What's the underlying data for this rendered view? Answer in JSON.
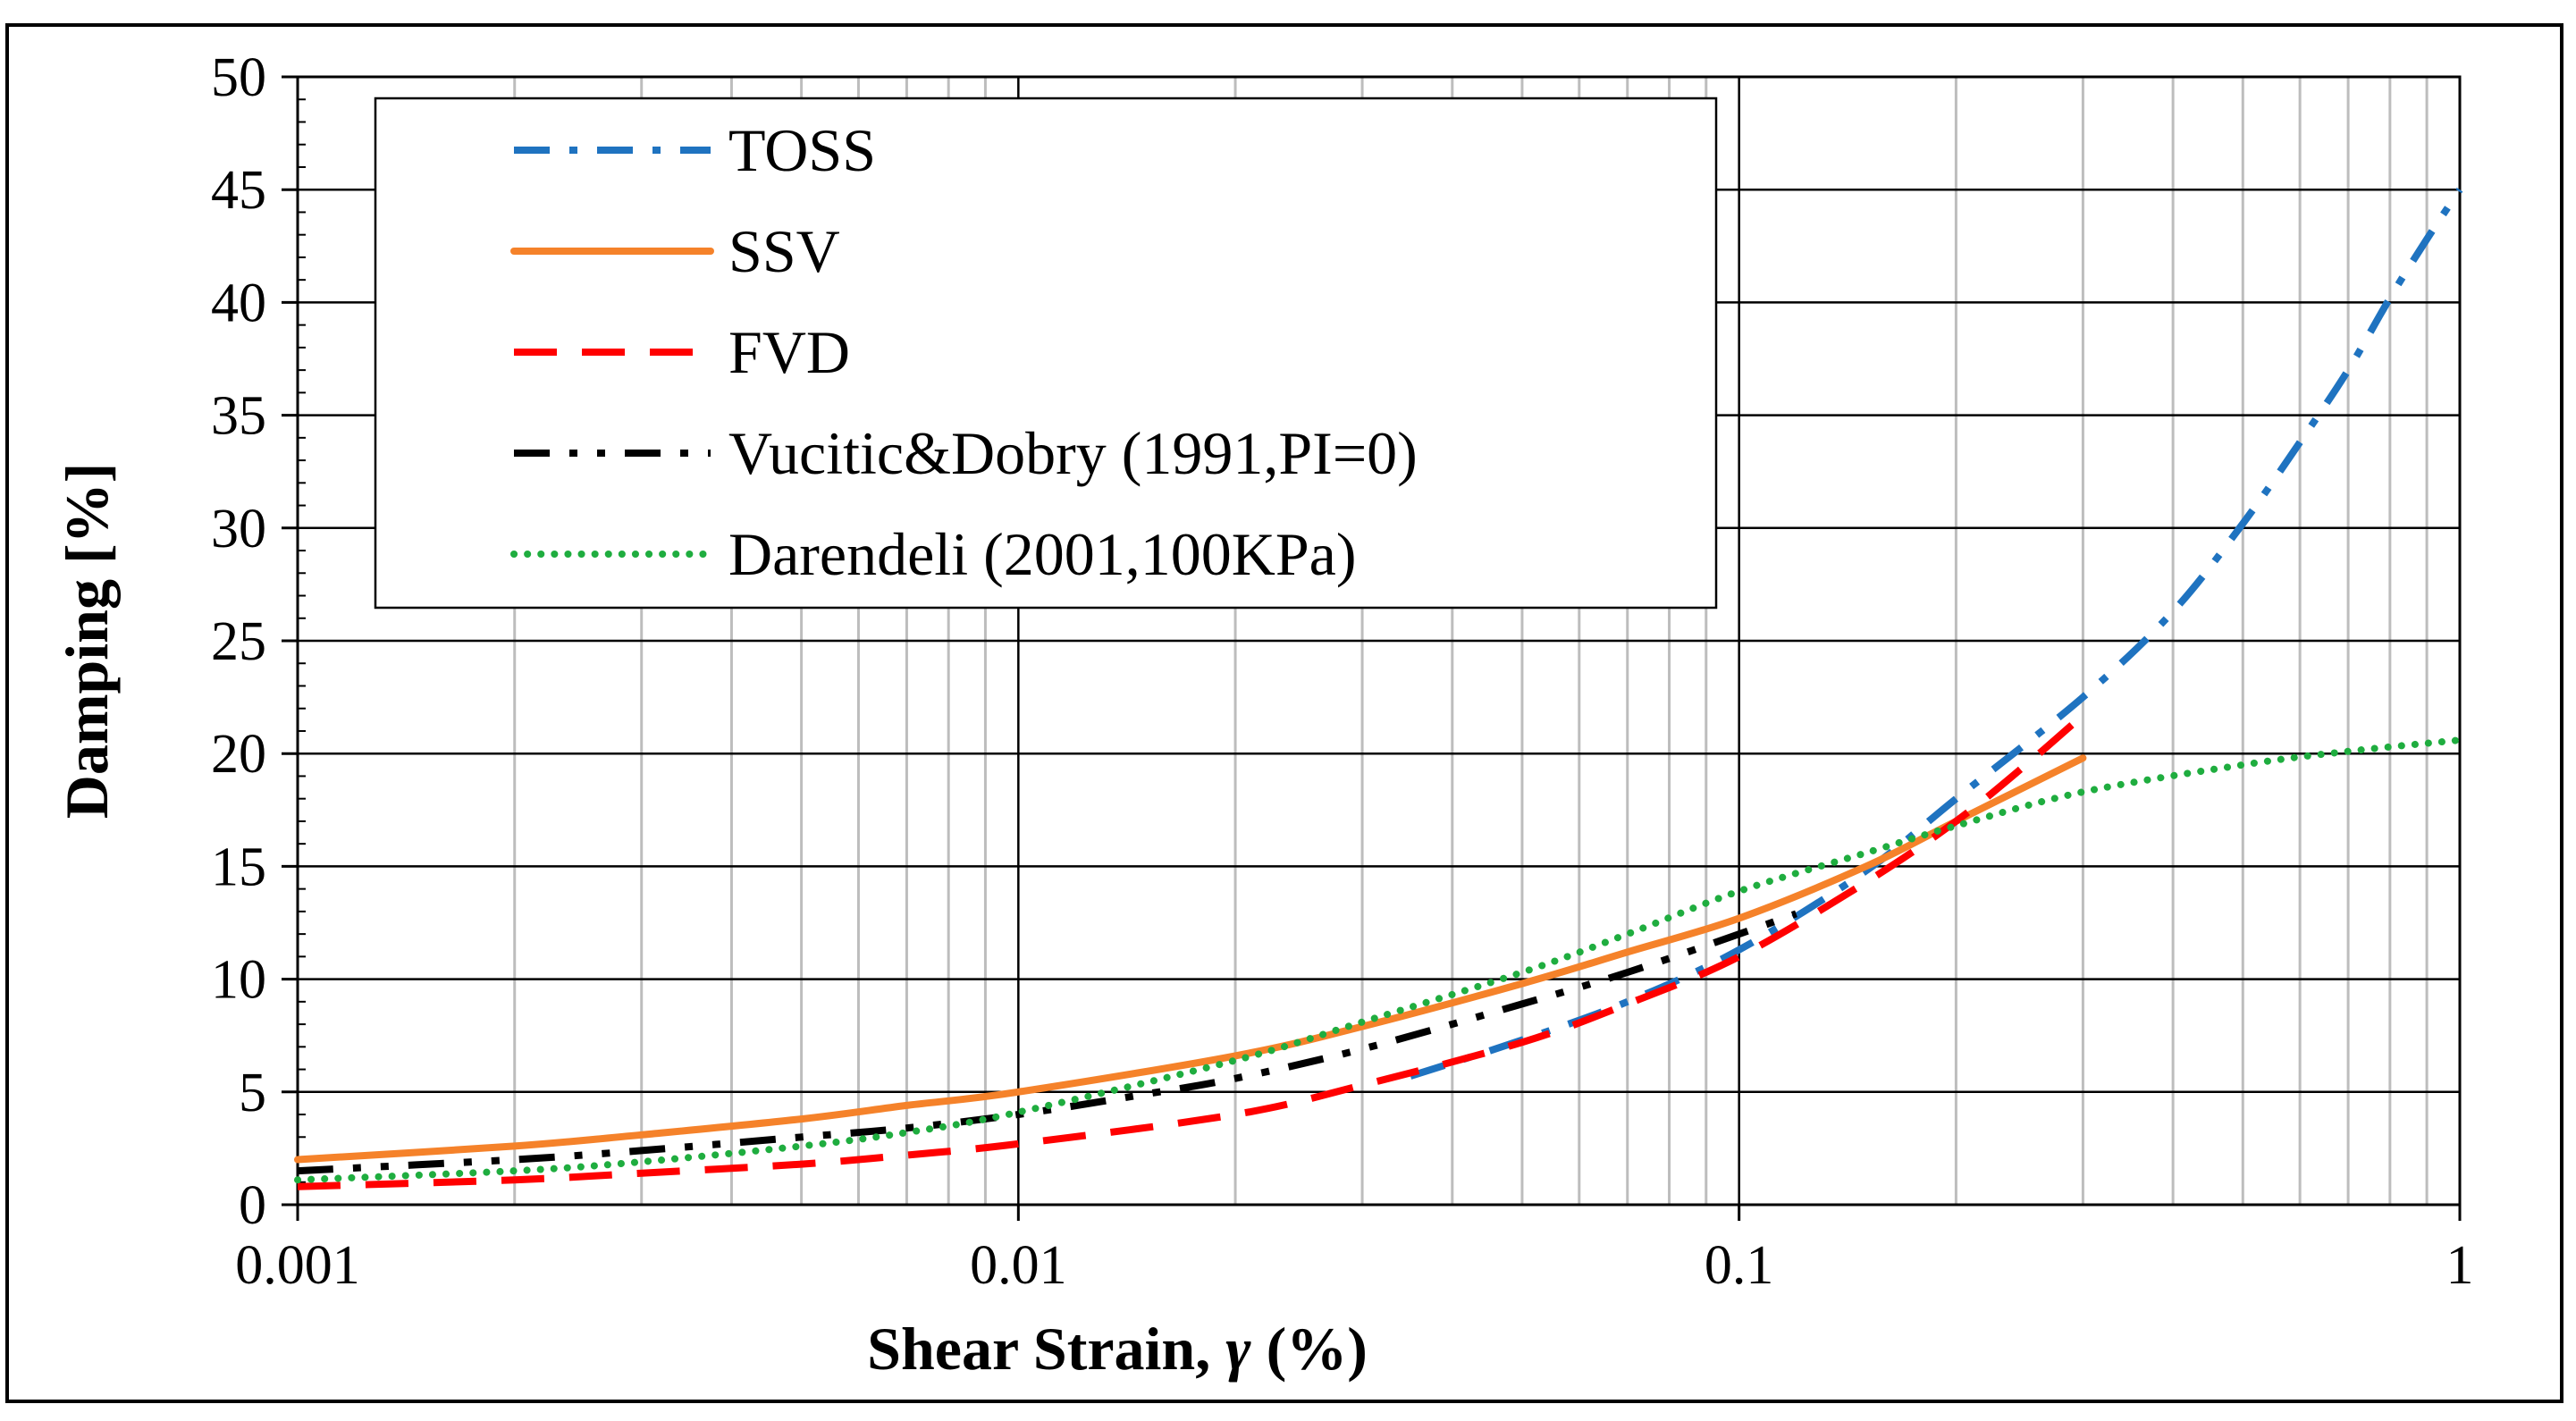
{
  "chart_data": {
    "type": "line",
    "xscale": "log",
    "xlabel_main": "Shear Strain, ",
    "xlabel_symbol": "γ",
    "xlabel_unit": " (%)",
    "ylabel": "Damping  [%]",
    "xlim": [
      0.001,
      1
    ],
    "ylim": [
      0,
      50
    ],
    "x_ticks": [
      0.001,
      0.01,
      0.1,
      1
    ],
    "x_tick_labels": [
      "0.001",
      "0.01",
      "0.1",
      "1"
    ],
    "y_ticks": [
      0,
      5,
      10,
      15,
      20,
      25,
      30,
      35,
      40,
      45,
      50
    ],
    "y_tick_labels": [
      "0",
      "5",
      "10",
      "15",
      "20",
      "25",
      "30",
      "35",
      "40",
      "45",
      "50"
    ],
    "grid": true,
    "legend_position": "top-left",
    "series": [
      {
        "name": "TOSS",
        "color": "#1f73c0",
        "style": "dash-dot",
        "x": [
          0.035,
          0.05,
          0.07,
          0.1,
          0.15,
          0.2,
          0.3,
          0.4,
          0.5,
          0.6,
          0.7,
          0.8,
          0.9,
          1.0
        ],
        "y": [
          5.7,
          7.3,
          9.0,
          11.3,
          14.8,
          18.0,
          22.5,
          26.3,
          30.2,
          33.8,
          37.0,
          40.2,
          42.8,
          45.0
        ]
      },
      {
        "name": "SSV",
        "color": "#f5822a",
        "style": "solid",
        "x": [
          0.001,
          0.002,
          0.003,
          0.005,
          0.007,
          0.01,
          0.02,
          0.03,
          0.05,
          0.07,
          0.1,
          0.15,
          0.2,
          0.3
        ],
        "y": [
          2.0,
          2.6,
          3.1,
          3.8,
          4.4,
          5.0,
          6.6,
          7.9,
          9.8,
          11.2,
          12.7,
          15.0,
          17.0,
          19.8
        ]
      },
      {
        "name": "FVD",
        "color": "#ff0000",
        "style": "dash",
        "x": [
          0.001,
          0.002,
          0.003,
          0.005,
          0.007,
          0.01,
          0.02,
          0.03,
          0.05,
          0.07,
          0.1,
          0.15,
          0.2,
          0.25,
          0.3
        ],
        "y": [
          0.8,
          1.1,
          1.4,
          1.8,
          2.2,
          2.7,
          4.0,
          5.3,
          7.2,
          8.9,
          11.0,
          14.3,
          17.0,
          19.5,
          21.7
        ]
      },
      {
        "name": "Vucitic&Dobry (1991,PI=0)",
        "color": "#000000",
        "style": "dash-dot-dot",
        "x": [
          0.001,
          0.002,
          0.003,
          0.005,
          0.007,
          0.01,
          0.015,
          0.02,
          0.03,
          0.05,
          0.07,
          0.1,
          0.12
        ],
        "y": [
          1.5,
          2.0,
          2.4,
          3.0,
          3.4,
          4.0,
          4.9,
          5.6,
          6.9,
          8.9,
          10.3,
          12.0,
          12.9
        ]
      },
      {
        "name": "Darendeli (2001,100KPa)",
        "color": "#1fad3f",
        "style": "dot",
        "x": [
          0.001,
          0.002,
          0.003,
          0.005,
          0.007,
          0.01,
          0.02,
          0.03,
          0.05,
          0.07,
          0.1,
          0.15,
          0.2,
          0.3,
          0.5,
          0.7,
          1.0
        ],
        "y": [
          1.1,
          1.5,
          1.9,
          2.6,
          3.2,
          4.1,
          6.4,
          8.1,
          10.3,
          12.0,
          13.9,
          15.6,
          16.8,
          18.3,
          19.5,
          20.1,
          20.6
        ]
      }
    ]
  }
}
